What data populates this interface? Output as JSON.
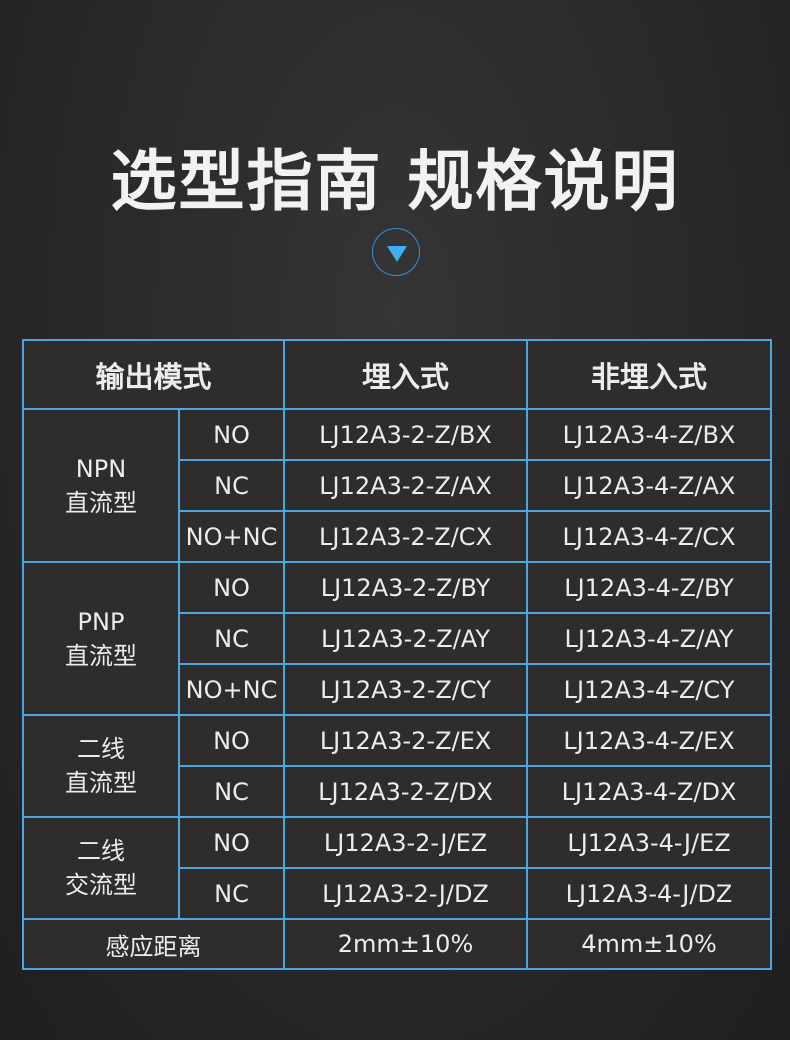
{
  "title": "选型指南 规格说明",
  "scroll_icon": "down-triangle-icon",
  "colors": {
    "border": "#4aa6dc",
    "accent": "#3ab0f0"
  },
  "header": {
    "mode": "输出模式",
    "embedded": "埋入式",
    "non_embedded": "非埋入式"
  },
  "groups": [
    {
      "name_line1": "NPN",
      "name_line2": "直流型",
      "rows": [
        {
          "mode": "NO",
          "embedded": "LJ12A3-2-Z/BX",
          "non_embedded": "LJ12A3-4-Z/BX"
        },
        {
          "mode": "NC",
          "embedded": "LJ12A3-2-Z/AX",
          "non_embedded": "LJ12A3-4-Z/AX"
        },
        {
          "mode": "NO+NC",
          "embedded": "LJ12A3-2-Z/CX",
          "non_embedded": "LJ12A3-4-Z/CX"
        }
      ]
    },
    {
      "name_line1": "PNP",
      "name_line2": "直流型",
      "rows": [
        {
          "mode": "NO",
          "embedded": "LJ12A3-2-Z/BY",
          "non_embedded": "LJ12A3-4-Z/BY"
        },
        {
          "mode": "NC",
          "embedded": "LJ12A3-2-Z/AY",
          "non_embedded": "LJ12A3-4-Z/AY"
        },
        {
          "mode": "NO+NC",
          "embedded": "LJ12A3-2-Z/CY",
          "non_embedded": "LJ12A3-4-Z/CY"
        }
      ]
    },
    {
      "name_line1": "二线",
      "name_line2": "直流型",
      "rows": [
        {
          "mode": "NO",
          "embedded": "LJ12A3-2-Z/EX",
          "non_embedded": "LJ12A3-4-Z/EX"
        },
        {
          "mode": "NC",
          "embedded": "LJ12A3-2-Z/DX",
          "non_embedded": "LJ12A3-4-Z/DX"
        }
      ]
    },
    {
      "name_line1": "二线",
      "name_line2": "交流型",
      "rows": [
        {
          "mode": "NO",
          "embedded": "LJ12A3-2-J/EZ",
          "non_embedded": "LJ12A3-4-J/EZ"
        },
        {
          "mode": "NC",
          "embedded": "LJ12A3-2-J/DZ",
          "non_embedded": "LJ12A3-4-J/DZ"
        }
      ]
    }
  ],
  "footer": {
    "label": "感应距离",
    "embedded": "2mm±10%",
    "non_embedded": "4mm±10%"
  }
}
